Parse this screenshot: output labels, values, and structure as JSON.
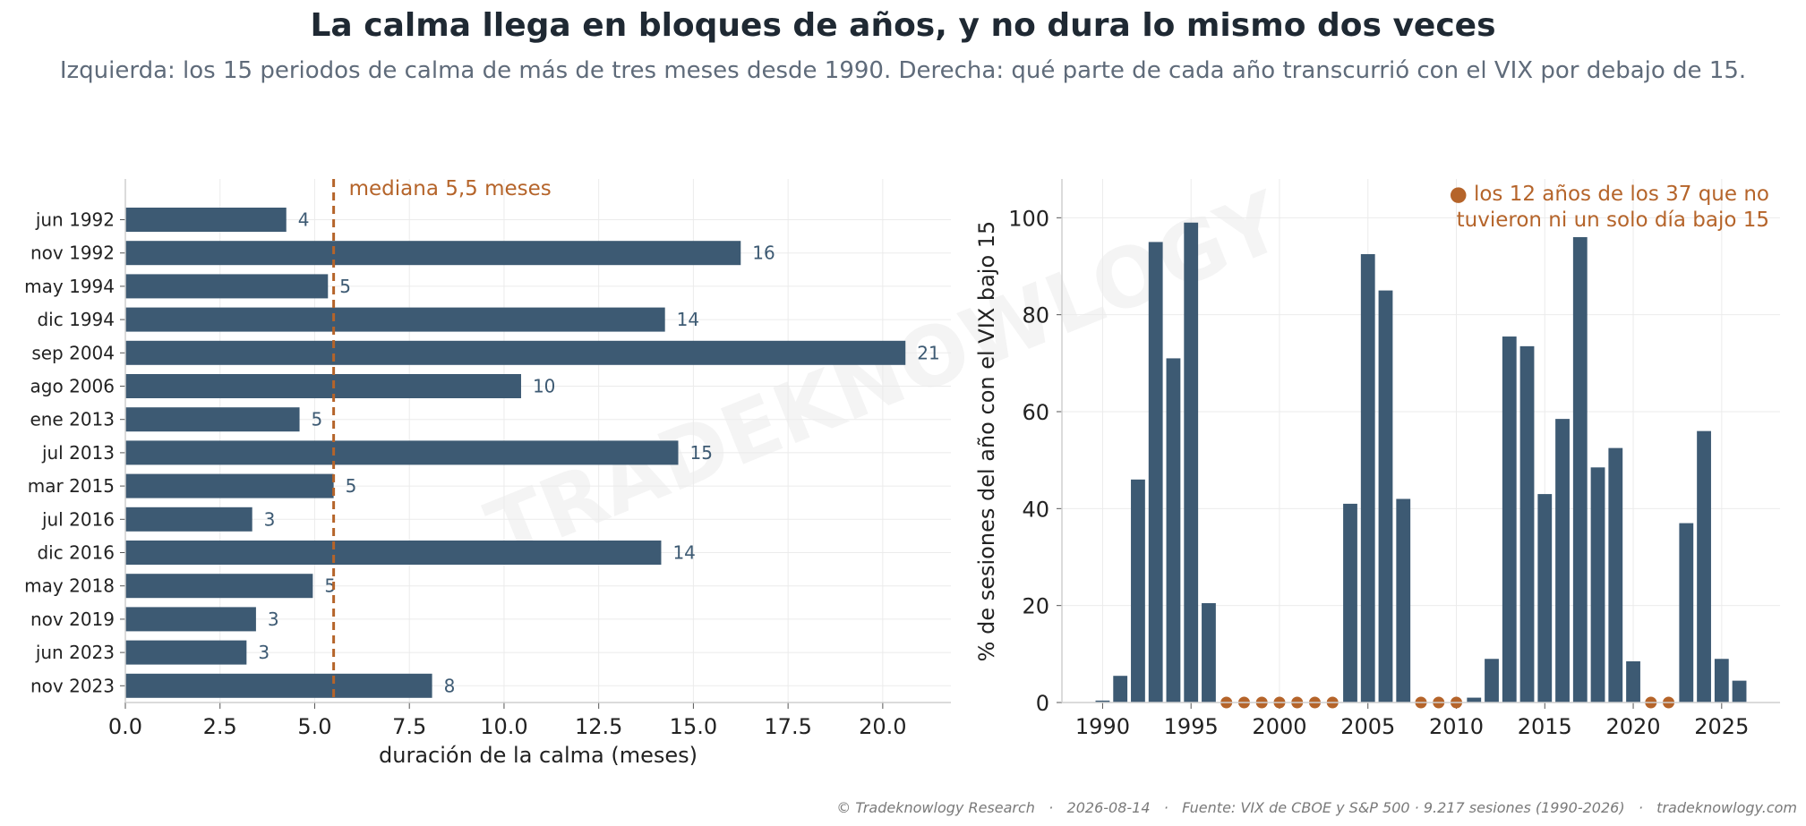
{
  "title": "La calma llega en bloques de años, y no dura lo mismo dos veces",
  "subtitle": "Izquierda: los 15 periodos de calma de más de tres meses desde 1990.  Derecha: qué parte de cada año transcurrió con el VIX por debajo de 15.",
  "watermark": "TRADEKNOWLOGY",
  "footer": "© Tradeknowlogy Research   ·   2026-08-14   ·   Fuente: VIX de CBOE y S&P 500 · 9.217 sesiones (1990-2026)   ·   tradeknowlogy.com",
  "colors": {
    "bar": "#3d5a73",
    "accent": "#b5642a",
    "grid": "#ebebeb",
    "axis": "#cfcfcf"
  },
  "chart_data": [
    {
      "type": "bar",
      "orientation": "horizontal",
      "categories": [
        "jun 1992",
        "nov 1992",
        "may 1994",
        "dic 1994",
        "sep 2004",
        "ago 2006",
        "ene 2013",
        "jul 2013",
        "mar 2015",
        "jul 2016",
        "dic 2016",
        "may 2018",
        "nov 2019",
        "jun 2023",
        "nov 2023"
      ],
      "values": [
        4.25,
        16.25,
        5.35,
        14.25,
        20.6,
        10.45,
        4.6,
        14.6,
        5.5,
        3.35,
        14.15,
        4.95,
        3.45,
        3.2,
        8.1
      ],
      "value_labels": [
        "4",
        "16",
        "5",
        "14",
        "21",
        "10",
        "5",
        "15",
        "5",
        "3",
        "14",
        "5",
        "3",
        "3",
        "8"
      ],
      "xlabel": "duración de la calma (meses)",
      "xlim": [
        0,
        21.8
      ],
      "xticks": [
        0,
        2.5,
        5,
        7.5,
        10,
        12.5,
        15,
        17.5,
        20
      ],
      "xtick_labels": [
        "0.0",
        "2.5",
        "5.0",
        "7.5",
        "10.0",
        "12.5",
        "15.0",
        "17.5",
        "20.0"
      ],
      "median": 5.5,
      "median_label": "mediana 5,5 meses",
      "grid": true
    },
    {
      "type": "bar",
      "x": [
        1990,
        1991,
        1992,
        1993,
        1994,
        1995,
        1996,
        1997,
        1998,
        1999,
        2000,
        2001,
        2002,
        2003,
        2004,
        2005,
        2006,
        2007,
        2008,
        2009,
        2010,
        2011,
        2012,
        2013,
        2014,
        2015,
        2016,
        2017,
        2018,
        2019,
        2020,
        2021,
        2022,
        2023,
        2024,
        2025,
        2026
      ],
      "values": [
        0.4,
        5.5,
        46,
        95,
        71,
        99,
        20.5,
        0,
        0,
        0,
        0,
        0,
        0,
        0,
        41,
        92.5,
        85,
        42,
        0,
        0,
        0,
        1,
        9,
        75.5,
        73.5,
        43,
        58.5,
        96,
        48.5,
        52.5,
        8.5,
        0,
        0,
        37,
        56,
        9,
        4.5
      ],
      "ylabel": "% de sesiones del año con el VIX bajo 15",
      "ylim": [
        0,
        108
      ],
      "yticks": [
        0,
        20,
        40,
        60,
        80,
        100
      ],
      "xticks": [
        1990,
        1995,
        2000,
        2005,
        2010,
        2015,
        2020,
        2025
      ],
      "xlim": [
        1987.7,
        2028.3
      ],
      "zero_years": [
        1997,
        1998,
        1999,
        2000,
        2001,
        2002,
        2003,
        2008,
        2009,
        2010,
        2021,
        2022
      ],
      "annotation": [
        "● los 12 años de los 37 que no",
        "tuvieron ni un solo día bajo 15"
      ],
      "grid": true
    }
  ]
}
